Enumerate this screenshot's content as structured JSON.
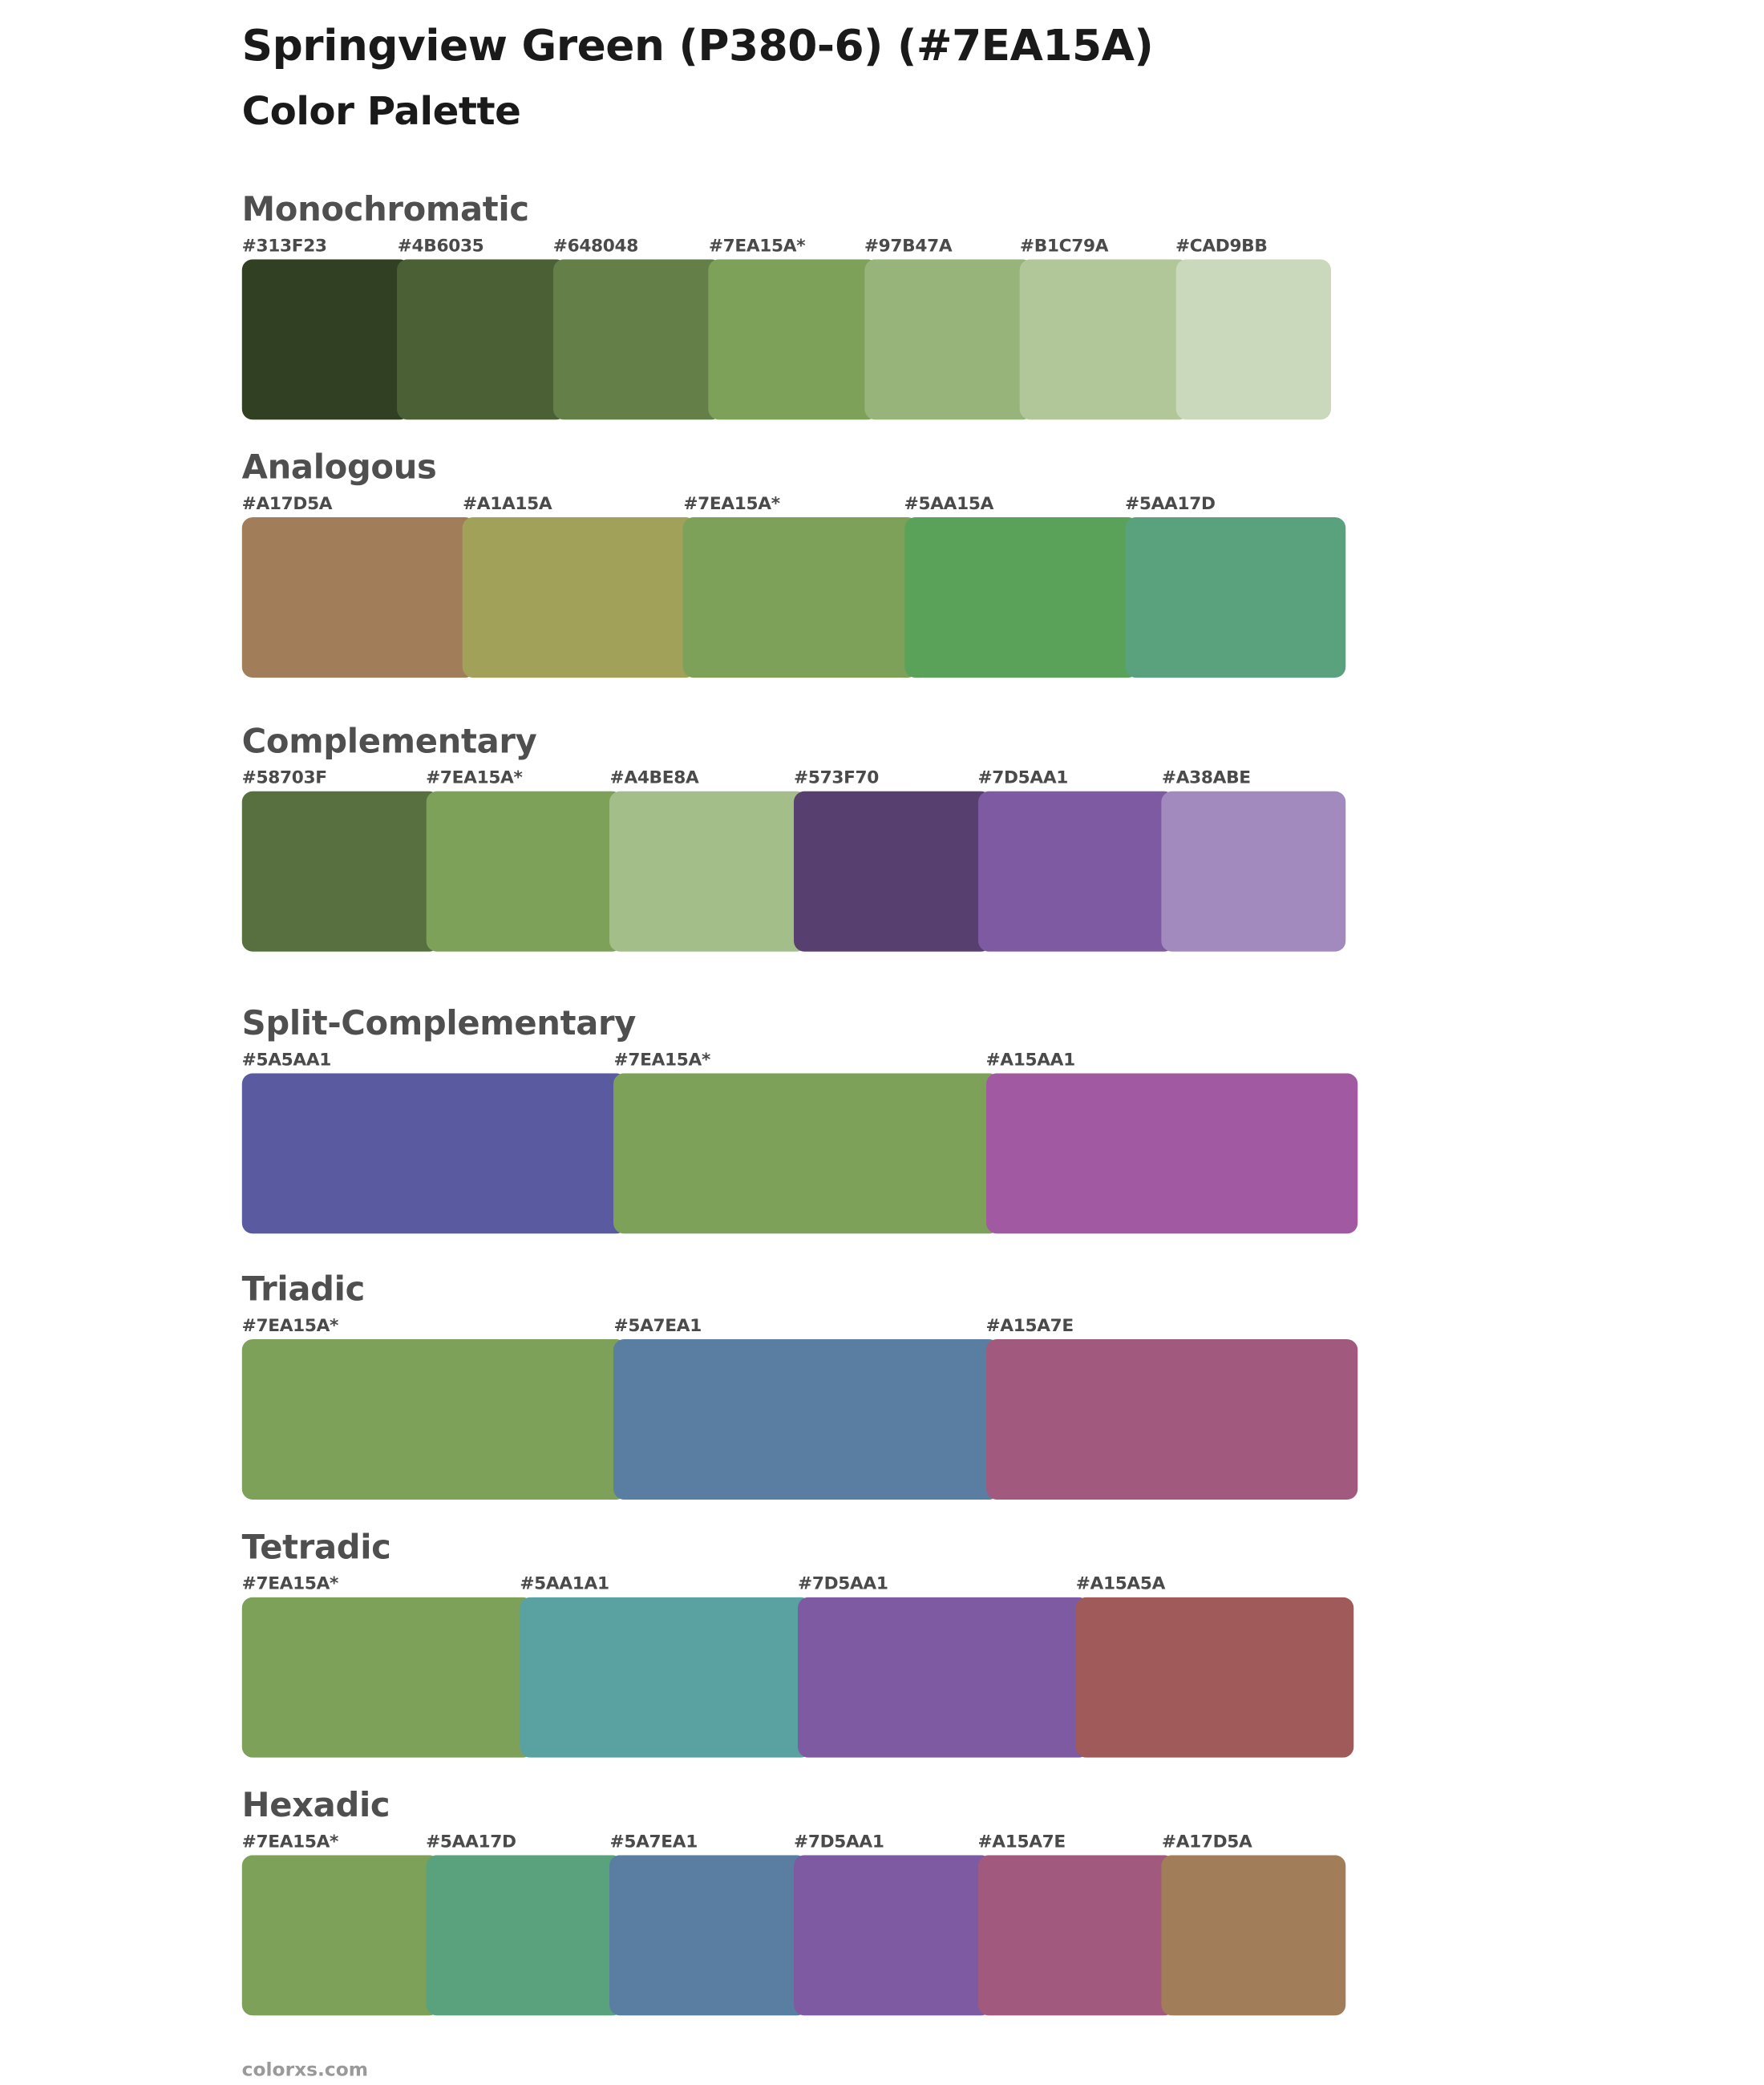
{
  "header": {
    "title": "Springview Green (P380-6) (#7EA15A)",
    "subtitle": "Color Palette"
  },
  "palettes": [
    {
      "key": "monochromatic",
      "title": "Monochromatic",
      "swatches": [
        {
          "label": "#313F23",
          "color": "#313F23"
        },
        {
          "label": "#4B6035",
          "color": "#4B6035"
        },
        {
          "label": "#648048",
          "color": "#648048"
        },
        {
          "label": "#7EA15A*",
          "color": "#7EA15A"
        },
        {
          "label": "#97B47A",
          "color": "#97B47A"
        },
        {
          "label": "#B1C79A",
          "color": "#B1C79A"
        },
        {
          "label": "#CAD9BB",
          "color": "#CAD9BB"
        }
      ]
    },
    {
      "key": "analogous",
      "title": "Analogous",
      "swatches": [
        {
          "label": "#A17D5A",
          "color": "#A17D5A"
        },
        {
          "label": "#A1A15A",
          "color": "#A1A15A"
        },
        {
          "label": "#7EA15A*",
          "color": "#7EA15A"
        },
        {
          "label": "#5AA15A",
          "color": "#5AA15A"
        },
        {
          "label": "#5AA17D",
          "color": "#5AA17D"
        }
      ]
    },
    {
      "key": "complementary",
      "title": "Complementary",
      "swatches": [
        {
          "label": "#58703F",
          "color": "#58703F"
        },
        {
          "label": "#7EA15A*",
          "color": "#7EA15A"
        },
        {
          "label": "#A4BE8A",
          "color": "#A4BE8A"
        },
        {
          "label": "#573F70",
          "color": "#573F70"
        },
        {
          "label": "#7D5AA1",
          "color": "#7D5AA1"
        },
        {
          "label": "#A38ABE",
          "color": "#A38ABE"
        }
      ]
    },
    {
      "key": "split-complementary",
      "title": "Split-Complementary",
      "swatches": [
        {
          "label": "#5A5AA1",
          "color": "#5A5AA1"
        },
        {
          "label": "#7EA15A*",
          "color": "#7EA15A"
        },
        {
          "label": "#A15AA1",
          "color": "#A15AA1"
        }
      ]
    },
    {
      "key": "triadic",
      "title": "Triadic",
      "swatches": [
        {
          "label": "#7EA15A*",
          "color": "#7EA15A"
        },
        {
          "label": "#5A7EA1",
          "color": "#5A7EA1"
        },
        {
          "label": "#A15A7E",
          "color": "#A15A7E"
        }
      ]
    },
    {
      "key": "tetradic",
      "title": "Tetradic",
      "swatches": [
        {
          "label": "#7EA15A*",
          "color": "#7EA15A"
        },
        {
          "label": "#5AA1A1",
          "color": "#5AA1A1"
        },
        {
          "label": "#7D5AA1",
          "color": "#7D5AA1"
        },
        {
          "label": "#A15A5A",
          "color": "#A15A5A"
        }
      ]
    },
    {
      "key": "hexadic",
      "title": "Hexadic",
      "swatches": [
        {
          "label": "#7EA15A*",
          "color": "#7EA15A"
        },
        {
          "label": "#5AA17D",
          "color": "#5AA17D"
        },
        {
          "label": "#5A7EA1",
          "color": "#5A7EA1"
        },
        {
          "label": "#7D5AA1",
          "color": "#7D5AA1"
        },
        {
          "label": "#A15A7E",
          "color": "#A15A7E"
        },
        {
          "label": "#A17D5A",
          "color": "#A17D5A"
        }
      ]
    }
  ],
  "footer": {
    "text": "colorxs.com"
  }
}
